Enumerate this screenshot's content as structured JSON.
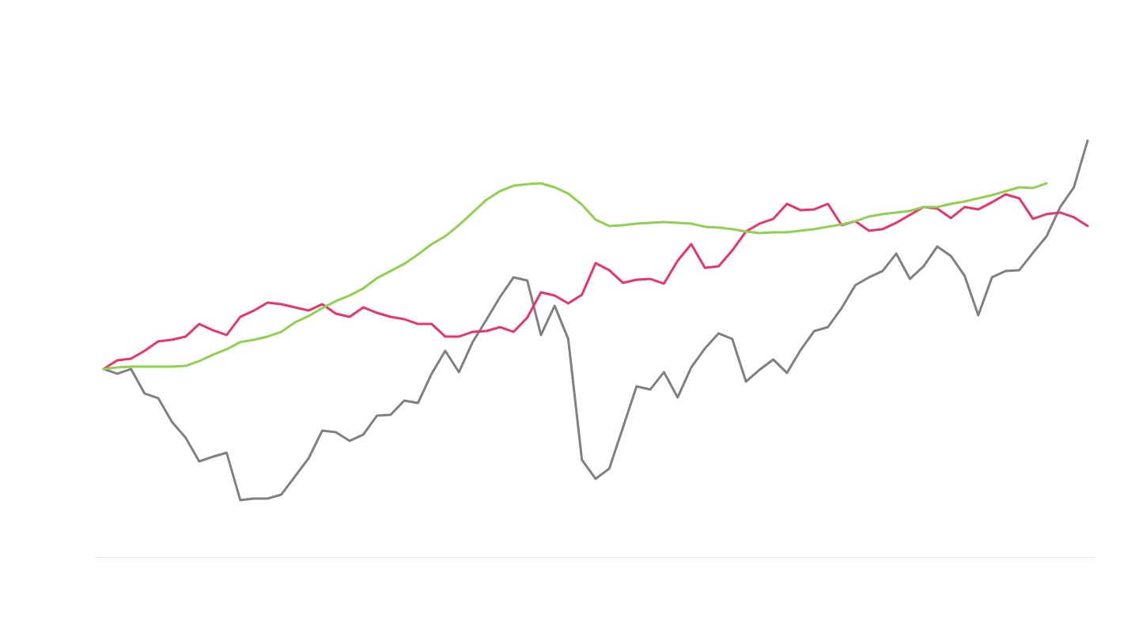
{
  "chart_data": {
    "type": "line",
    "x": [
      0,
      1,
      2,
      3,
      4,
      5,
      6,
      7,
      8,
      9,
      10,
      11,
      12,
      13,
      14,
      15,
      16,
      17,
      18,
      19,
      20,
      21,
      22,
      23,
      24,
      25,
      26,
      27,
      28,
      29,
      30,
      31,
      32,
      33,
      34,
      35,
      36,
      37,
      38,
      39,
      40,
      41,
      42,
      43,
      44,
      45,
      46,
      47,
      48,
      49,
      50,
      51,
      52,
      53,
      54,
      55,
      56,
      57,
      58,
      59,
      60,
      61,
      62,
      63,
      64,
      65,
      66,
      67,
      68,
      69,
      70,
      71,
      72
    ],
    "xlim": [
      0,
      72
    ],
    "ylim": [
      0,
      705
    ],
    "series": [
      {
        "color": "#808080",
        "values": [
          238,
          232,
          238,
          207,
          201,
          171,
          151,
          121,
          127,
          132,
          72,
          74,
          74,
          79,
          102,
          125,
          160,
          158,
          147,
          155,
          179,
          180,
          198,
          195,
          232,
          261,
          234,
          272,
          300,
          329,
          354,
          350,
          281,
          318,
          276,
          123,
          99,
          112,
          164,
          216,
          212,
          234,
          202,
          240,
          264,
          283,
          276,
          222,
          237,
          250,
          233,
          262,
          286,
          291,
          315,
          344,
          354,
          362,
          384,
          352,
          368,
          393,
          381,
          356,
          306,
          354,
          362,
          363,
          385,
          406,
          443,
          468,
          527
        ]
      },
      {
        "color": "#e8336d",
        "values": [
          238,
          249,
          251,
          261,
          273,
          275,
          279,
          295,
          287,
          281,
          304,
          312,
          322,
          320,
          316,
          312,
          320,
          308,
          304,
          316,
          309,
          304,
          301,
          295,
          295,
          279,
          279,
          285,
          286,
          291,
          285,
          303,
          335,
          331,
          321,
          332,
          372,
          363,
          347,
          351,
          352,
          346,
          375,
          396,
          366,
          368,
          388,
          412,
          422,
          428,
          447,
          439,
          440,
          447,
          420,
          425,
          413,
          415,
          423,
          433,
          443,
          441,
          429,
          443,
          440,
          449,
          459,
          454,
          428,
          434,
          436,
          430,
          419
        ]
      },
      {
        "color": "#8fd14f",
        "values": [
          238,
          240,
          241,
          241,
          241,
          241,
          242,
          248,
          256,
          263,
          272,
          275,
          279,
          285,
          297,
          305,
          315,
          324,
          331,
          340,
          353,
          362,
          371,
          383,
          396,
          406,
          420,
          436,
          452,
          463,
          470,
          472,
          473,
          468,
          460,
          446,
          427,
          419,
          420,
          422,
          423,
          424,
          423,
          422,
          418,
          417,
          415,
          412,
          410,
          411,
          411,
          413,
          415,
          418,
          421,
          425,
          431,
          434,
          436,
          438,
          443,
          443,
          447,
          450,
          454,
          458,
          463,
          468,
          467,
          473,
          null,
          null,
          null
        ]
      }
    ]
  }
}
